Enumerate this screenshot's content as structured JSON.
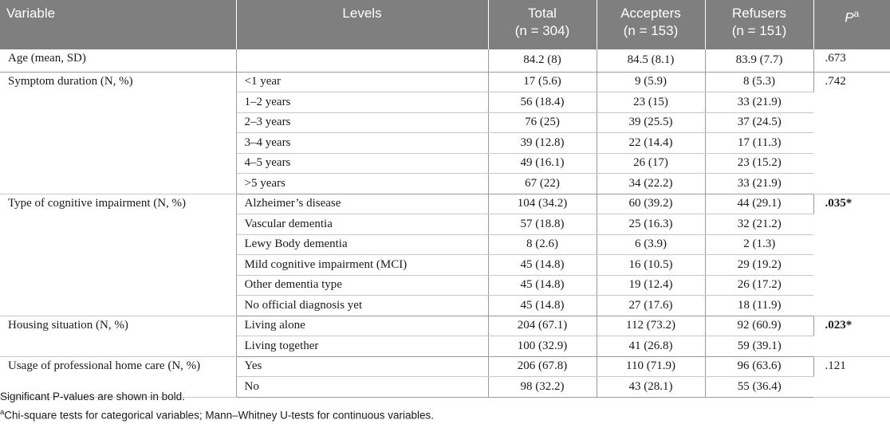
{
  "table": {
    "headers": {
      "variable": "Variable",
      "levels": "Levels",
      "total": "Total",
      "total_n": "(n = 304)",
      "accepters": "Accepters",
      "accepters_n": "(n = 153)",
      "refusers": "Refusers",
      "refusers_n": "(n = 151)",
      "p": "P",
      "p_sup": "a"
    },
    "groups": [
      {
        "variable": "Age (mean, SD)",
        "p": ".673",
        "p_bold": false,
        "rows": [
          {
            "level": "",
            "total": "84.2 (8)",
            "accepters": "84.5 (8.1)",
            "refusers": "83.9 (7.7)"
          }
        ]
      },
      {
        "variable": "Symptom duration (N, %)",
        "p": ".742",
        "p_bold": false,
        "rows": [
          {
            "level": "<1 year",
            "total": "17 (5.6)",
            "accepters": "9 (5.9)",
            "refusers": "8 (5.3)"
          },
          {
            "level": "1–2 years",
            "total": "56 (18.4)",
            "accepters": "23 (15)",
            "refusers": "33 (21.9)"
          },
          {
            "level": "2–3 years",
            "total": "76 (25)",
            "accepters": "39 (25.5)",
            "refusers": "37 (24.5)"
          },
          {
            "level": "3–4 years",
            "total": "39 (12.8)",
            "accepters": "22 (14.4)",
            "refusers": "17 (11.3)"
          },
          {
            "level": "4–5 years",
            "total": "49 (16.1)",
            "accepters": "26 (17)",
            "refusers": "23 (15.2)"
          },
          {
            "level": ">5 years",
            "total": "67 (22)",
            "accepters": "34 (22.2)",
            "refusers": "33 (21.9)"
          }
        ]
      },
      {
        "variable": "Type of cognitive impairment (N, %)",
        "p": ".035*",
        "p_bold": true,
        "rows": [
          {
            "level": "Alzheimer’s disease",
            "total": "104 (34.2)",
            "accepters": "60 (39.2)",
            "refusers": "44 (29.1)"
          },
          {
            "level": "Vascular dementia",
            "total": "57 (18.8)",
            "accepters": "25 (16.3)",
            "refusers": "32 (21.2)"
          },
          {
            "level": "Lewy Body dementia",
            "total": "8 (2.6)",
            "accepters": "6 (3.9)",
            "refusers": "2 (1.3)"
          },
          {
            "level": "Mild cognitive impairment (MCI)",
            "total": "45 (14.8)",
            "accepters": "16 (10.5)",
            "refusers": "29 (19.2)"
          },
          {
            "level": "Other dementia type",
            "total": "45 (14.8)",
            "accepters": "19 (12.4)",
            "refusers": "26 (17.2)"
          },
          {
            "level": "No official diagnosis yet",
            "total": "45 (14.8)",
            "accepters": "27 (17.6)",
            "refusers": "18 (11.9)"
          }
        ]
      },
      {
        "variable": "Housing situation (N, %)",
        "p": ".023*",
        "p_bold": true,
        "rows": [
          {
            "level": "Living alone",
            "total": "204 (67.1)",
            "accepters": "112 (73.2)",
            "refusers": "92 (60.9)"
          },
          {
            "level": "Living together",
            "total": "100 (32.9)",
            "accepters": "41 (26.8)",
            "refusers": "59 (39.1)"
          }
        ]
      },
      {
        "variable": "Usage of professional home care (N, %)",
        "p": ".121",
        "p_bold": false,
        "rows": [
          {
            "level": "Yes",
            "total": "206 (67.8)",
            "accepters": "110 (71.9)",
            "refusers": "96 (63.6)"
          },
          {
            "level": "No",
            "total": "98 (32.2)",
            "accepters": "43 (28.1)",
            "refusers": "55 (36.4)"
          }
        ]
      }
    ]
  },
  "notes": {
    "line1": "Significant P-values are shown in bold.",
    "line2_sup": "a",
    "line2": "Chi-square tests for categorical variables; Mann–Whitney U-tests for continuous variables."
  }
}
